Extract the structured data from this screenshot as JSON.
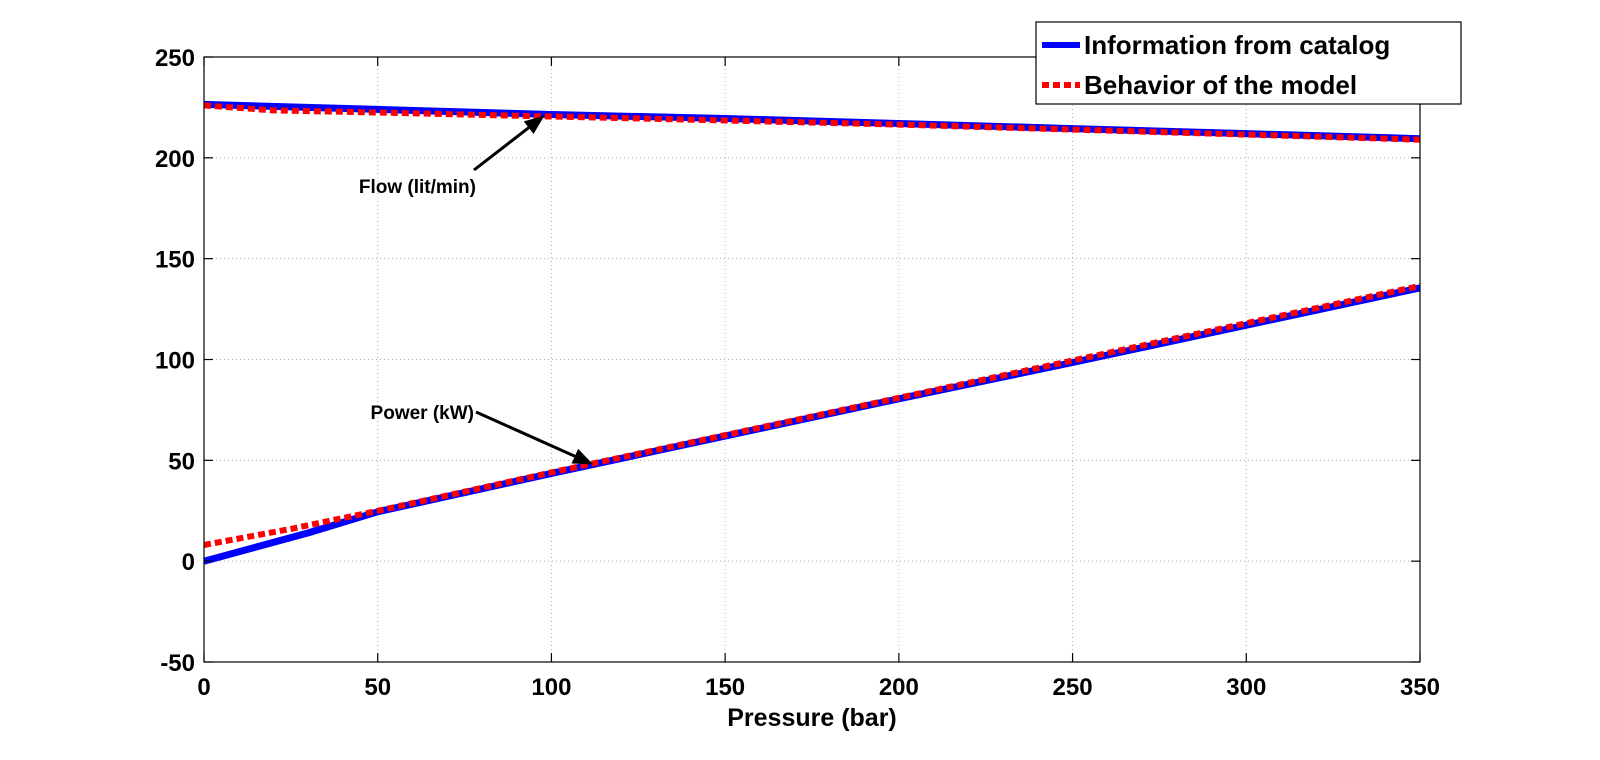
{
  "chart_data": {
    "type": "line",
    "title": "",
    "xlabel": "Pressure (bar)",
    "ylabel": "",
    "xlim": [
      0,
      350
    ],
    "ylim": [
      -50,
      250
    ],
    "xticks": [
      0,
      50,
      100,
      150,
      200,
      250,
      300,
      350
    ],
    "yticks": [
      -50,
      0,
      50,
      100,
      150,
      200,
      250
    ],
    "xtick_labels": [
      "0",
      "50",
      "100",
      "150",
      "200",
      "250",
      "300",
      "350"
    ],
    "ytick_labels": [
      "-50",
      "0",
      "50",
      "100",
      "150",
      "200",
      "250"
    ],
    "grid": true,
    "legend": {
      "placement": "top-right",
      "entries": [
        {
          "label": "Information from catalog",
          "color": "#0000ff",
          "style": "solid"
        },
        {
          "label": "Behavior of the model",
          "color": "#ff0000",
          "style": "dashed"
        }
      ]
    },
    "series": [
      {
        "name": "Information from catalog",
        "color": "#0000ff",
        "style": "solid",
        "curve": "Flow",
        "x": [
          0,
          50,
          100,
          150,
          200,
          250,
          300,
          350
        ],
        "y": [
          226.5,
          224,
          221.5,
          219.5,
          217,
          214.5,
          212,
          209.5
        ]
      },
      {
        "name": "Behavior of the model",
        "color": "#ff0000",
        "style": "dashed",
        "curve": "Flow",
        "x": [
          0,
          20,
          50,
          100,
          150,
          200,
          250,
          300,
          350
        ],
        "y": [
          226,
          223.5,
          222.5,
          220.5,
          218.5,
          216.5,
          214,
          211.5,
          209
        ]
      },
      {
        "name": "Information from catalog",
        "color": "#0000ff",
        "style": "solid",
        "curve": "Power",
        "x": [
          0,
          30,
          50,
          100,
          150,
          200,
          250,
          300,
          350
        ],
        "y": [
          0,
          14,
          24.5,
          43.5,
          62,
          80.5,
          98.5,
          117,
          135.5
        ]
      },
      {
        "name": "Behavior of the model",
        "color": "#ff0000",
        "style": "dashed",
        "curve": "Power",
        "x": [
          0,
          25,
          50,
          100,
          150,
          200,
          250,
          300,
          350
        ],
        "y": [
          8,
          16,
          25,
          44,
          62.5,
          81,
          99.5,
          118,
          136.5
        ]
      }
    ],
    "annotations": [
      {
        "text": "Flow (lit/min)",
        "arrow_to": {
          "x": 98,
          "y": 221
        }
      },
      {
        "text": "Power (kW)",
        "arrow_to": {
          "x": 112,
          "y": 48
        }
      }
    ]
  }
}
